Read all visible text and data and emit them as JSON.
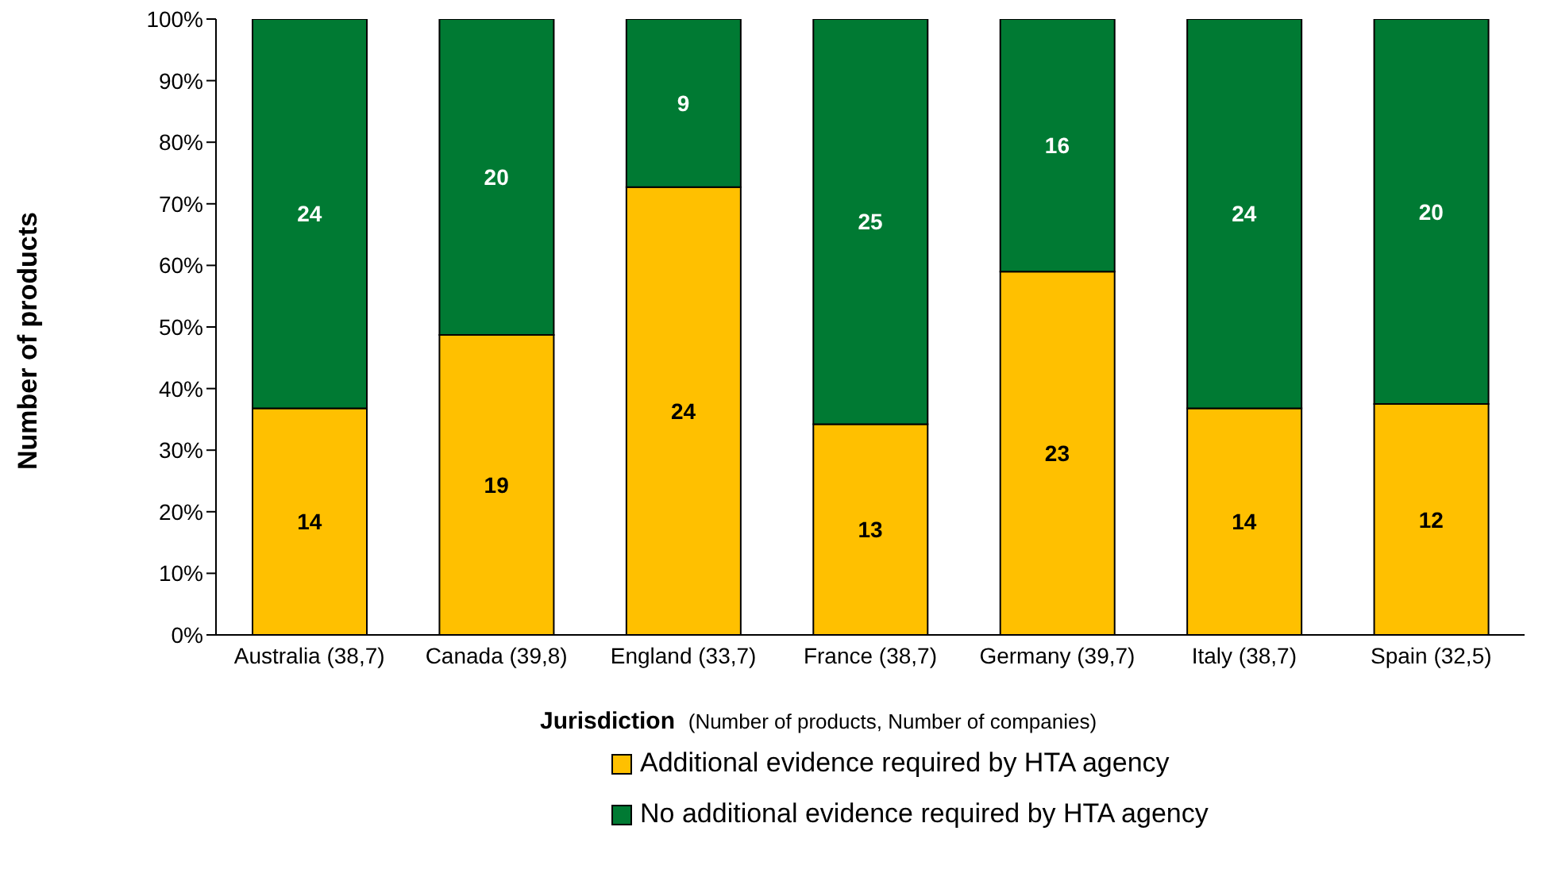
{
  "chart_data": {
    "type": "bar",
    "stacked": true,
    "xlabel": "Jurisdiction  (Number of products, Number of companies)",
    "ylabel": "Number of products",
    "categories": [
      "Australia (38,7)",
      "Canada (39,8)",
      "England (33,7)",
      "France (38,7)",
      "Germany (39,7)",
      "Italy (38,7)",
      "Spain  (32,5)"
    ],
    "series": [
      {
        "name": "Additional evidence required by HTA agency",
        "color": "#ffc000",
        "values": [
          36.8,
          48.7,
          72.7,
          34.2,
          59.0,
          36.8,
          37.5
        ]
      },
      {
        "name": "No additional evidence required by HTA agency",
        "color": "#007a33",
        "values": [
          63.2,
          51.3,
          27.3,
          65.8,
          41.0,
          63.2,
          62.5
        ]
      }
    ],
    "annotations": [
      "14",
      "19",
      "24",
      "13",
      "23",
      "14",
      "12",
      "24",
      "20",
      "9",
      "25",
      "16",
      "24",
      "20"
    ],
    "ylim": [
      0,
      100
    ],
    "yticks": [
      {
        "value": 0,
        "label": "0%"
      },
      {
        "value": 10,
        "label": "10%"
      },
      {
        "value": 20,
        "label": "20%"
      },
      {
        "value": 30,
        "label": "30%"
      },
      {
        "value": 40,
        "label": "40%"
      },
      {
        "value": 50,
        "label": "50%"
      },
      {
        "value": 60,
        "label": "60%"
      },
      {
        "value": 70,
        "label": "70%"
      },
      {
        "value": 80,
        "label": "80%"
      },
      {
        "value": 90,
        "label": "90%"
      },
      {
        "value": 100,
        "label": "100%"
      }
    ],
    "grid": false,
    "legend": "bottom"
  }
}
